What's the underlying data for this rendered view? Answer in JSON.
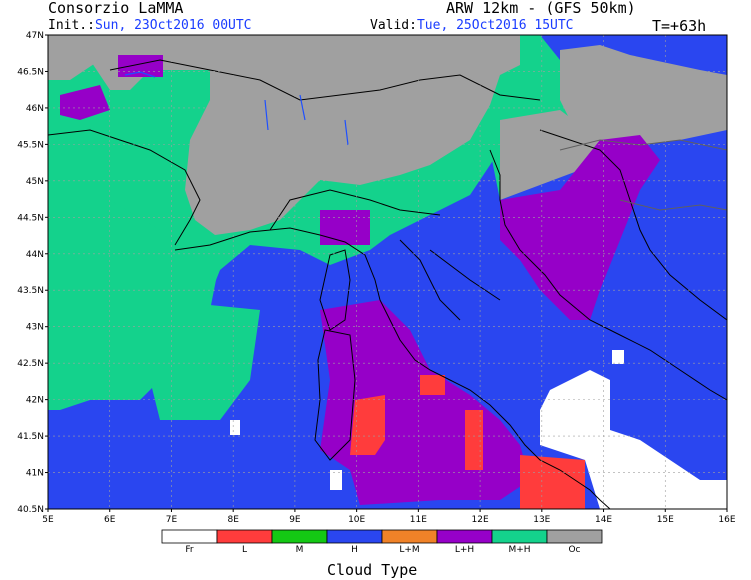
{
  "header": {
    "org": "Consorzio LaMMA",
    "model": "ARW 12km - (GFS 50km)",
    "init_label": "Init.:",
    "init_value": "Sun, 23Oct2016 00UTC",
    "valid_label": "Valid:",
    "valid_value": "Tue, 25Oct2016 15UTC",
    "lead": "T=+63h"
  },
  "map": {
    "lon_range": [
      5,
      16
    ],
    "lat_range": [
      40.5,
      47
    ],
    "x_ticks": [
      "5E",
      "6E",
      "7E",
      "8E",
      "9E",
      "10E",
      "11E",
      "12E",
      "13E",
      "14E",
      "15E",
      "16E"
    ],
    "y_ticks": [
      "47N",
      "46.5N",
      "46N",
      "45.5N",
      "45N",
      "44.5N",
      "44N",
      "43.5N",
      "43N",
      "42.5N",
      "42N",
      "41.5N",
      "41N",
      "40.5N"
    ]
  },
  "legend": {
    "title": "Cloud Type",
    "items": [
      {
        "label": "Fr",
        "color": "#ffffff"
      },
      {
        "label": "L",
        "color": "#ff3c3c"
      },
      {
        "label": "M",
        "color": "#14c814"
      },
      {
        "label": "H",
        "color": "#2a46f0"
      },
      {
        "label": "L+M",
        "color": "#f08228"
      },
      {
        "label": "L+H",
        "color": "#9600c8"
      },
      {
        "label": "M+H",
        "color": "#14d28c"
      },
      {
        "label": "Oc",
        "color": "#a0a0a0"
      }
    ]
  },
  "colors": {
    "frame": "#000000",
    "grid": "#a0a0a0",
    "border": "#000000",
    "lake": "#1e50ff"
  }
}
